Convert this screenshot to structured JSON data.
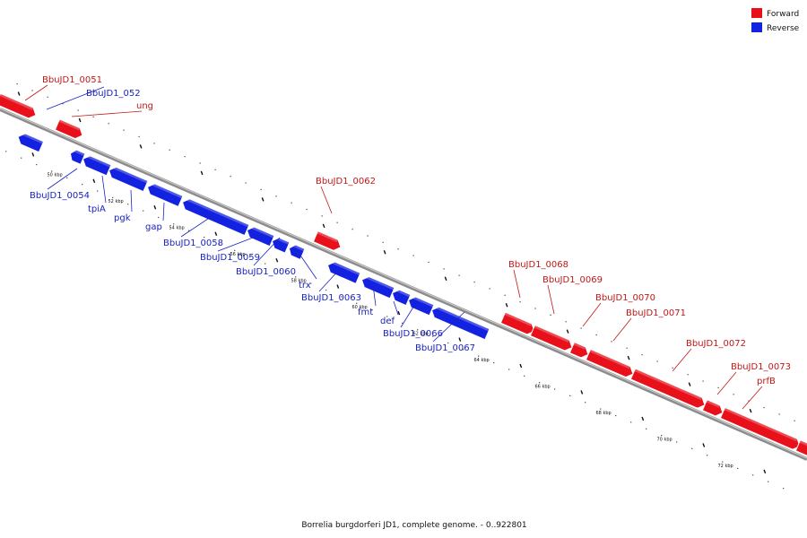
{
  "legend": {
    "forward_label": "Forward",
    "reverse_label": "Reverse",
    "forward_color": "#e8101a",
    "reverse_color": "#1322e0"
  },
  "caption": "Borrelia burgdorferi JD1, complete genome. - 0..922801",
  "ticks": [
    "50 kbp",
    "52 kbp",
    "54 kbp",
    "56 kbp",
    "58 kbp",
    "60 kbp",
    "62 kbp",
    "64 kbp",
    "66 kbp",
    "68 kbp",
    "70 kbp",
    "72 kbp"
  ],
  "genes": [
    {
      "label": "BbuJD1_0051",
      "strand": "forward"
    },
    {
      "label": "BbuJD1_052",
      "strand": "reverse"
    },
    {
      "label": "ung",
      "strand": "forward"
    },
    {
      "label": "BbuJD1_0054",
      "strand": "reverse"
    },
    {
      "label": "tpiA",
      "strand": "reverse"
    },
    {
      "label": "pgk",
      "strand": "reverse"
    },
    {
      "label": "gap",
      "strand": "reverse"
    },
    {
      "label": "BbuJD1_0058",
      "strand": "reverse"
    },
    {
      "label": "BbuJD1_0059",
      "strand": "reverse"
    },
    {
      "label": "BbuJD1_0060",
      "strand": "reverse"
    },
    {
      "label": "trx",
      "strand": "reverse"
    },
    {
      "label": "BbuJD1_0062",
      "strand": "forward"
    },
    {
      "label": "BbuJD1_0063",
      "strand": "reverse"
    },
    {
      "label": "fmt",
      "strand": "reverse"
    },
    {
      "label": "def",
      "strand": "reverse"
    },
    {
      "label": "BbuJD1_0066",
      "strand": "reverse"
    },
    {
      "label": "BbuJD1_0067",
      "strand": "reverse"
    },
    {
      "label": "BbuJD1_0068",
      "strand": "forward"
    },
    {
      "label": "BbuJD1_0069",
      "strand": "forward"
    },
    {
      "label": "BbuJD1_0070",
      "strand": "forward"
    },
    {
      "label": "BbuJD1_0071",
      "strand": "forward"
    },
    {
      "label": "BbuJD1_0072",
      "strand": "forward"
    },
    {
      "label": "BbuJD1_0073",
      "strand": "forward"
    },
    {
      "label": "prfB",
      "strand": "forward"
    }
  ]
}
